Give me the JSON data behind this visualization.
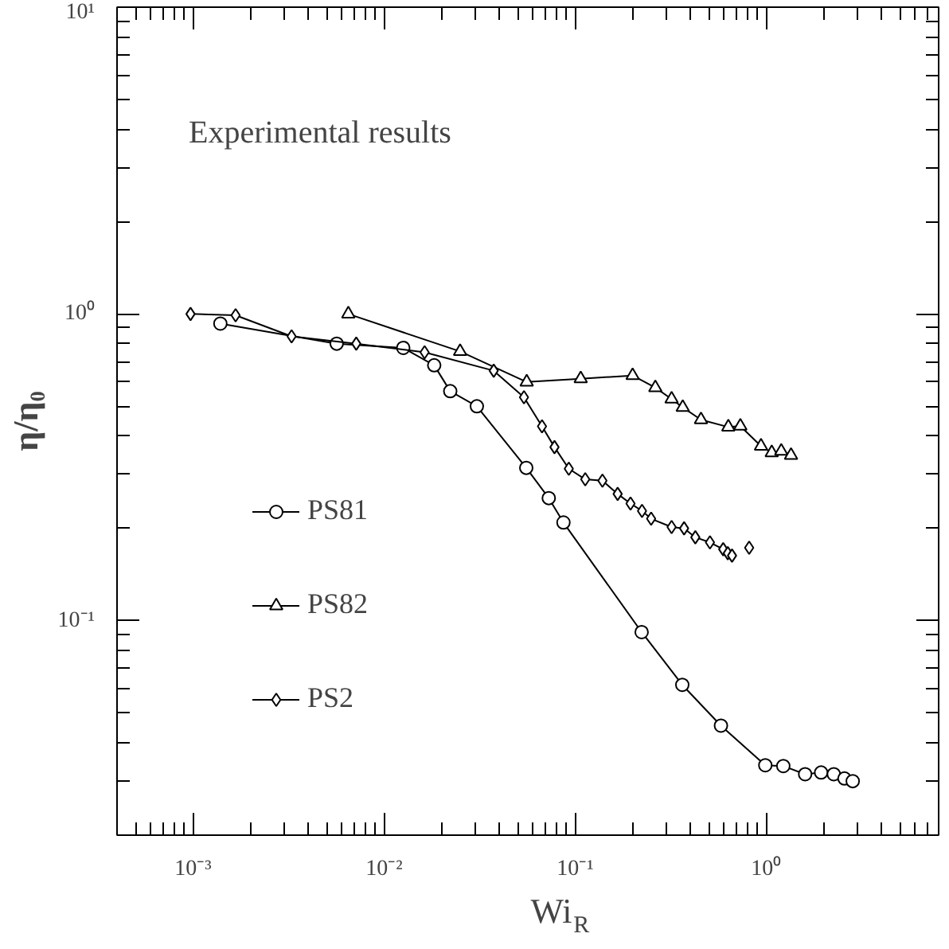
{
  "chart_data": {
    "type": "line",
    "xlabel": "Wi$_{R}$",
    "ylabel": "η/η₀",
    "log": "xy",
    "grid": false,
    "legend": "left",
    "xlim": [
      0.0004,
      8
    ],
    "ylim": [
      0.02,
      10
    ],
    "xticks": [
      {
        "value": 0.001,
        "label": "10⁻³"
      },
      {
        "value": 0.01,
        "label": "10⁻²"
      },
      {
        "value": 0.1,
        "label": "10⁻¹"
      },
      {
        "value": 1,
        "label": "10⁰"
      }
    ],
    "yticks": [
      {
        "value": 0.1,
        "label": "10⁻¹"
      },
      {
        "value": 1,
        "label": "10⁰"
      },
      {
        "value": 10,
        "label": "10¹"
      }
    ],
    "annotations": [
      "Experimental results"
    ],
    "series": [
      {
        "name": "PS81",
        "color": "#000000",
        "marker": "circle",
        "x": [
          0.00139,
          0.00565,
          0.0126,
          0.0183,
          0.0222,
          0.0306,
          0.0555,
          0.0728,
          0.0869,
          0.223,
          0.364,
          0.58,
          0.99,
          1.23,
          1.6,
          1.94,
          2.26,
          2.57,
          2.84
        ],
        "values": [
          0.93,
          0.8,
          0.775,
          0.68,
          0.56,
          0.5,
          0.315,
          0.251,
          0.209,
          0.0918,
          0.0618,
          0.0455,
          0.0338,
          0.0336,
          0.0316,
          0.032,
          0.0316,
          0.0306,
          0.03
        ]
      },
      {
        "name": "PS82",
        "color": "#000000",
        "marker": "triangle",
        "x": [
          0.0065,
          0.025,
          0.0558,
          0.107,
          0.2,
          0.263,
          0.32,
          0.366,
          0.456,
          0.634,
          0.733,
          0.94,
          1.07,
          1.2,
          1.35
        ],
        "values": [
          1.0,
          0.755,
          0.6,
          0.615,
          0.63,
          0.575,
          0.528,
          0.496,
          0.452,
          0.428,
          0.431,
          0.371,
          0.353,
          0.357,
          0.346
        ]
      },
      {
        "name": "PS2",
        "color": "#000000",
        "marker": "diamond",
        "x": [
          0.00097,
          0.00167,
          0.00328,
          0.00715,
          0.0163,
          0.0375,
          0.054,
          0.0671,
          0.078,
          0.0927,
          0.113,
          0.139,
          0.167,
          0.195,
          0.224,
          0.25,
          0.32,
          0.372,
          0.426,
          0.508,
          0.596,
          0.63,
          0.663,
          0.807,
          0.815
        ],
        "values": [
          1.0,
          0.99,
          0.845,
          0.8,
          0.75,
          0.653,
          0.535,
          0.43,
          0.368,
          0.313,
          0.289,
          0.286,
          0.259,
          0.241,
          0.228,
          0.215,
          0.202,
          0.2,
          0.187,
          0.18,
          0.171,
          0.166,
          0.163,
          null,
          0.173
        ]
      }
    ]
  }
}
